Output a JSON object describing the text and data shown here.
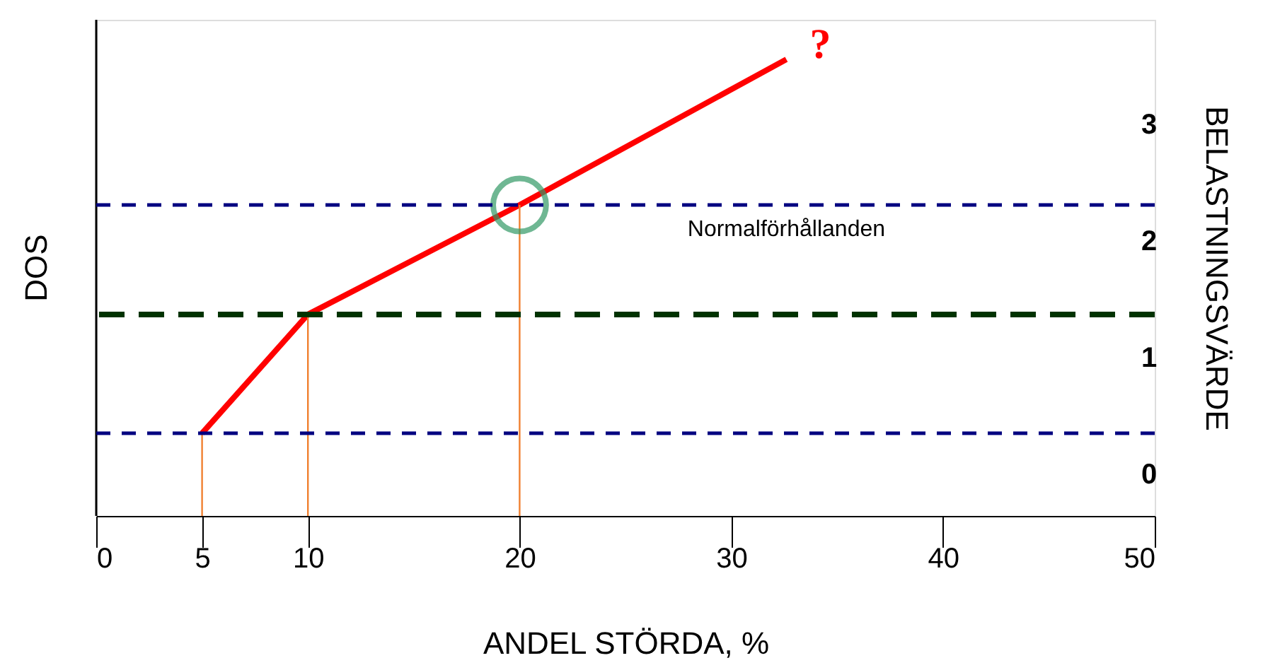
{
  "chart_data": {
    "type": "line",
    "xlabel": "ANDEL STÖRDA, %",
    "ylabel": "DOS",
    "y2label": "BELASTNINGSVÄRDE",
    "xlim": [
      0,
      50
    ],
    "xticks": [
      0,
      5,
      10,
      20,
      30,
      40,
      50
    ],
    "y2lim": [
      -0.36,
      3.9
    ],
    "y2ticks": [
      0,
      1,
      2,
      3
    ],
    "grid": false,
    "series": [
      {
        "type": "line",
        "axis": "y2",
        "color": "#ff0000",
        "marker": "none",
        "line_style": "solid",
        "x": [
          5,
          10,
          20,
          32.6
        ],
        "values": [
          0.35,
          1.37,
          2.31,
          3.56
        ]
      },
      {
        "type": "line",
        "axis": "y2",
        "color": "#f08030",
        "marker": "none",
        "line_style": "solid",
        "x": [
          5,
          5
        ],
        "values": [
          -0.36,
          0.35
        ]
      },
      {
        "type": "line",
        "axis": "y2",
        "color": "#f08030",
        "marker": "none",
        "line_style": "solid",
        "x": [
          10,
          10
        ],
        "values": [
          -0.36,
          1.37
        ]
      },
      {
        "type": "line",
        "axis": "y2",
        "color": "#f08030",
        "marker": "none",
        "line_style": "solid",
        "x": [
          20,
          20
        ],
        "values": [
          -0.36,
          2.31
        ]
      },
      {
        "type": "scatter",
        "axis": "y2",
        "color": "#339966",
        "marker": "circle",
        "x": [
          20
        ],
        "values": [
          2.31
        ]
      }
    ],
    "ref_lines": [
      {
        "axis": "y2",
        "value": 0.35,
        "color": "#000080",
        "line_style": "dashed"
      },
      {
        "axis": "y2",
        "value": 1.37,
        "color": "#003300",
        "line_style": "dashed"
      },
      {
        "axis": "y2",
        "value": 2.31,
        "color": "#000080",
        "line_style": "dashed"
      }
    ],
    "annotations": [
      "?",
      "Normalförhållanden"
    ]
  }
}
